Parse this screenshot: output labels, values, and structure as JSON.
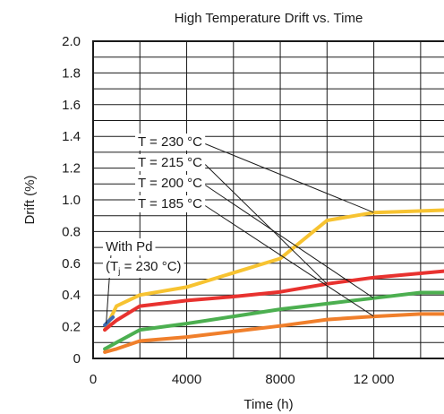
{
  "chart_data": {
    "type": "line",
    "title": "High Temperature Drift vs. Time",
    "xlabel": "Time (h)",
    "ylabel": "Drift (%)",
    "xlim": [
      0,
      15000
    ],
    "ylim": [
      0,
      2.0
    ],
    "x_ticks": [
      0,
      4000,
      8000,
      12000
    ],
    "x_tick_labels": [
      "0",
      "4000",
      "8000",
      "12 000"
    ],
    "y_ticks": [
      0,
      0.2,
      0.4,
      0.6,
      0.8,
      1.0,
      1.2,
      1.4,
      1.6,
      1.8,
      2.0
    ],
    "y_tick_labels": [
      "0",
      "0.2",
      "0.4",
      "0.6",
      "0.8",
      "1.0",
      "1.2",
      "1.4",
      "1.6",
      "1.8",
      "2.0"
    ],
    "grid": true,
    "series": [
      {
        "name": "T = 230 °C",
        "color": "#f7c331",
        "points": [
          [
            500,
            0.18
          ],
          [
            1000,
            0.33
          ],
          [
            2000,
            0.4
          ],
          [
            4000,
            0.45
          ],
          [
            6000,
            0.54
          ],
          [
            8000,
            0.63
          ],
          [
            10000,
            0.87
          ],
          [
            12000,
            0.92
          ],
          [
            15000,
            0.935
          ]
        ]
      },
      {
        "name": "T = 215 °C",
        "color": "#e8322f",
        "points": [
          [
            500,
            0.18
          ],
          [
            1000,
            0.24
          ],
          [
            2000,
            0.33
          ],
          [
            4000,
            0.365
          ],
          [
            6000,
            0.39
          ],
          [
            8000,
            0.42
          ],
          [
            10000,
            0.47
          ],
          [
            12000,
            0.51
          ],
          [
            15000,
            0.55
          ]
        ]
      },
      {
        "name": "T = 200 °C",
        "color": "#4caf50",
        "points": [
          [
            500,
            0.06
          ],
          [
            1000,
            0.1
          ],
          [
            2000,
            0.18
          ],
          [
            4000,
            0.22
          ],
          [
            6000,
            0.265
          ],
          [
            8000,
            0.31
          ],
          [
            10000,
            0.345
          ],
          [
            12000,
            0.38
          ],
          [
            14000,
            0.415
          ],
          [
            15000,
            0.415
          ]
        ]
      },
      {
        "name": "T = 185 °C",
        "color": "#f07f2b",
        "points": [
          [
            500,
            0.04
          ],
          [
            1000,
            0.06
          ],
          [
            2000,
            0.11
          ],
          [
            4000,
            0.135
          ],
          [
            6000,
            0.17
          ],
          [
            8000,
            0.205
          ],
          [
            10000,
            0.245
          ],
          [
            12000,
            0.265
          ],
          [
            14000,
            0.28
          ],
          [
            15000,
            0.28
          ]
        ]
      },
      {
        "name": "With Pd",
        "color": "#3d6bb3",
        "points": [
          [
            500,
            0.21
          ],
          [
            700,
            0.24
          ],
          [
            850,
            0.26
          ]
        ]
      }
    ],
    "annotations": {
      "legend_230": "T = 230 °C",
      "legend_215": "T = 215 °C",
      "legend_200": "T = 200 °C",
      "legend_185": "T = 185 °C",
      "with_pd": "With Pd",
      "tj_prefix": "(T",
      "tj_sub": "j",
      "tj_suffix": " = 230 °C)"
    }
  }
}
